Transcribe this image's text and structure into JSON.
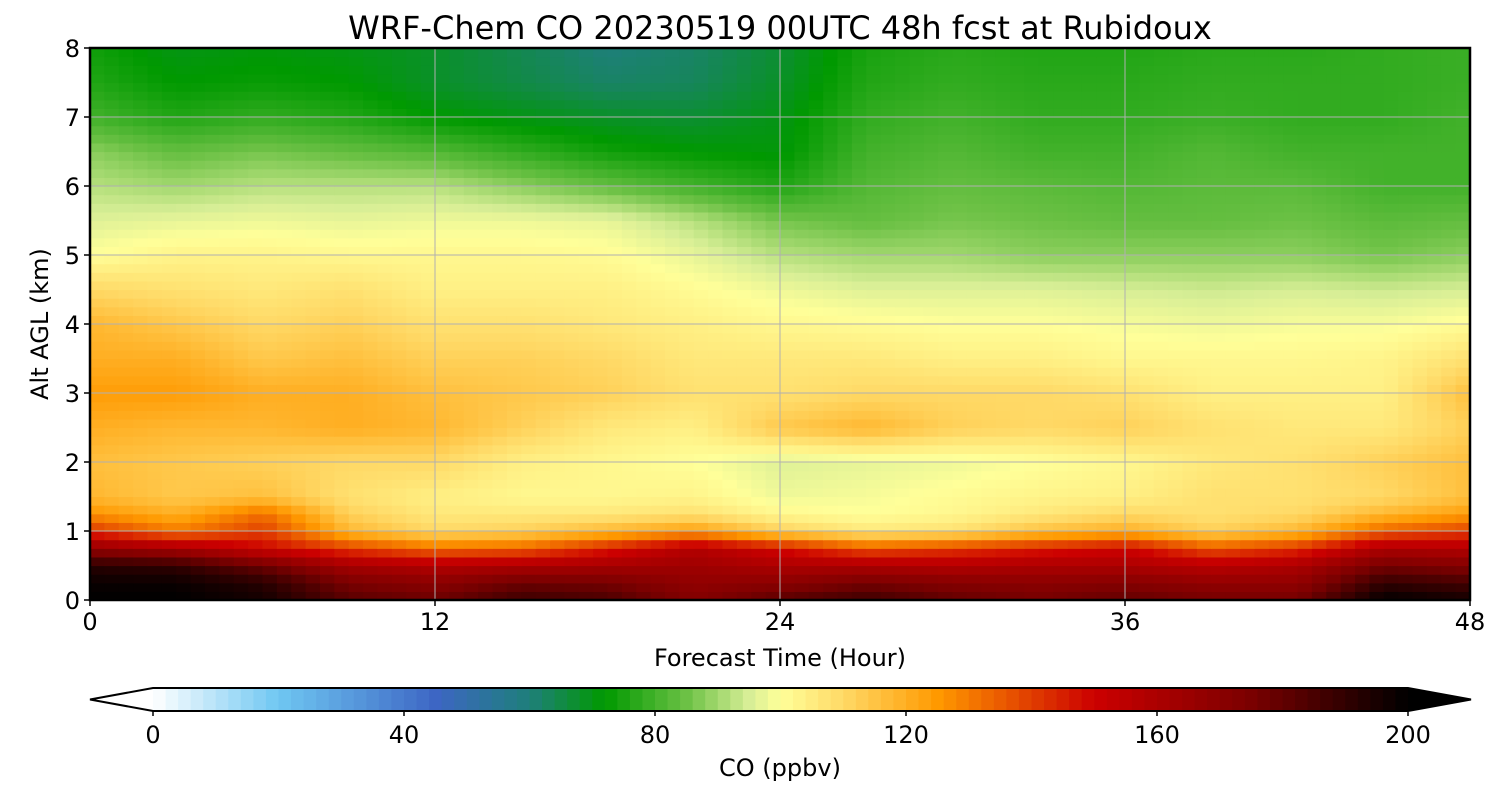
{
  "chart_data": {
    "type": "heatmap",
    "title": "WRF-Chem CO  20230519 00UTC 48h fcst at Rubidoux",
    "xlabel": "Forecast Time (Hour)",
    "ylabel": "Alt AGL (km)",
    "xlim": [
      0,
      48
    ],
    "ylim": [
      0,
      8
    ],
    "xticks": [
      "0",
      "12",
      "24",
      "36",
      "48"
    ],
    "yticks": [
      "0",
      "1",
      "2",
      "3",
      "4",
      "5",
      "6",
      "7",
      "8"
    ],
    "grid": true,
    "colorbar": {
      "label": "CO  (ppbv)",
      "range": [
        0,
        200
      ],
      "ticks": [
        "0",
        "40",
        "80",
        "120",
        "160",
        "200"
      ],
      "extend": "both",
      "stops": [
        {
          "v": 0,
          "c": "#ffffff"
        },
        {
          "v": 20,
          "c": "#6fc7f2"
        },
        {
          "v": 45,
          "c": "#3d66c4"
        },
        {
          "v": 60,
          "c": "#1e7f7a"
        },
        {
          "v": 72,
          "c": "#009900"
        },
        {
          "v": 85,
          "c": "#6cc145"
        },
        {
          "v": 95,
          "c": "#d7ee96"
        },
        {
          "v": 100,
          "c": "#ffff99"
        },
        {
          "v": 110,
          "c": "#ffd966"
        },
        {
          "v": 125,
          "c": "#ff9900"
        },
        {
          "v": 150,
          "c": "#cc0000"
        },
        {
          "v": 175,
          "c": "#7a0000"
        },
        {
          "v": 200,
          "c": "#000000"
        }
      ]
    },
    "altitudes_km": [
      0,
      0.25,
      0.5,
      0.75,
      1,
      1.25,
      1.5,
      2,
      2.5,
      3,
      3.5,
      4,
      4.5,
      5,
      5.5,
      6,
      6.5,
      7,
      7.5,
      8
    ],
    "hours": [
      0,
      3,
      6,
      9,
      12,
      15,
      18,
      21,
      24,
      27,
      30,
      33,
      36,
      39,
      42,
      45,
      48
    ],
    "values_ppbv": [
      [
        200,
        200,
        196,
        182,
        178,
        188,
        185,
        172,
        182,
        188,
        180,
        176,
        180,
        176,
        176,
        200,
        196
      ],
      [
        198,
        198,
        192,
        175,
        170,
        178,
        176,
        168,
        170,
        176,
        172,
        170,
        172,
        168,
        168,
        190,
        186
      ],
      [
        192,
        190,
        178,
        162,
        158,
        160,
        162,
        164,
        160,
        160,
        158,
        160,
        160,
        156,
        160,
        176,
        172
      ],
      [
        168,
        162,
        150,
        140,
        132,
        134,
        145,
        158,
        148,
        136,
        140,
        145,
        150,
        136,
        142,
        160,
        158
      ],
      [
        142,
        130,
        140,
        118,
        110,
        112,
        118,
        124,
        112,
        106,
        108,
        116,
        120,
        112,
        118,
        134,
        140
      ],
      [
        126,
        120,
        132,
        112,
        106,
        106,
        106,
        108,
        102,
        100,
        102,
        106,
        110,
        108,
        110,
        118,
        124
      ],
      [
        118,
        114,
        116,
        108,
        104,
        102,
        102,
        103,
        98,
        99,
        101,
        103,
        104,
        108,
        108,
        110,
        116
      ],
      [
        116,
        114,
        112,
        110,
        110,
        104,
        102,
        100,
        96,
        97,
        98,
        100,
        102,
        106,
        108,
        112,
        116
      ],
      [
        120,
        118,
        118,
        120,
        118,
        112,
        106,
        104,
        114,
        118,
        112,
        110,
        112,
        108,
        106,
        106,
        112
      ],
      [
        124,
        124,
        120,
        120,
        116,
        114,
        112,
        108,
        108,
        110,
        110,
        110,
        108,
        104,
        104,
        104,
        116
      ],
      [
        120,
        120,
        114,
        116,
        112,
        112,
        110,
        106,
        106,
        106,
        104,
        104,
        102,
        102,
        102,
        103,
        108
      ],
      [
        118,
        114,
        110,
        112,
        108,
        108,
        106,
        104,
        102,
        101,
        100,
        100,
        99,
        98,
        99,
        99,
        101
      ],
      [
        110,
        108,
        106,
        108,
        104,
        104,
        104,
        101,
        98,
        96,
        96,
        96,
        95,
        94,
        95,
        94,
        95
      ],
      [
        100,
        103,
        103,
        102,
        102,
        102,
        101,
        97,
        92,
        90,
        90,
        88,
        88,
        88,
        88,
        86,
        88
      ],
      [
        96,
        97,
        98,
        97,
        98,
        98,
        97,
        92,
        86,
        84,
        86,
        85,
        84,
        84,
        85,
        83,
        84
      ],
      [
        92,
        90,
        92,
        92,
        92,
        88,
        84,
        80,
        76,
        82,
        84,
        83,
        82,
        83,
        83,
        80,
        80
      ],
      [
        88,
        84,
        86,
        84,
        82,
        78,
        74,
        72,
        71,
        80,
        82,
        80,
        80,
        82,
        80,
        80,
        80
      ],
      [
        80,
        76,
        78,
        76,
        72,
        70,
        68,
        67,
        70,
        78,
        80,
        78,
        78,
        79,
        78,
        78,
        80
      ],
      [
        76,
        72,
        73,
        72,
        68,
        65,
        62,
        63,
        68,
        76,
        78,
        77,
        77,
        78,
        78,
        78,
        79
      ],
      [
        74,
        70,
        71,
        70,
        68,
        64,
        60,
        62,
        67,
        75,
        77,
        76,
        76,
        77,
        77,
        78,
        79
      ]
    ]
  }
}
